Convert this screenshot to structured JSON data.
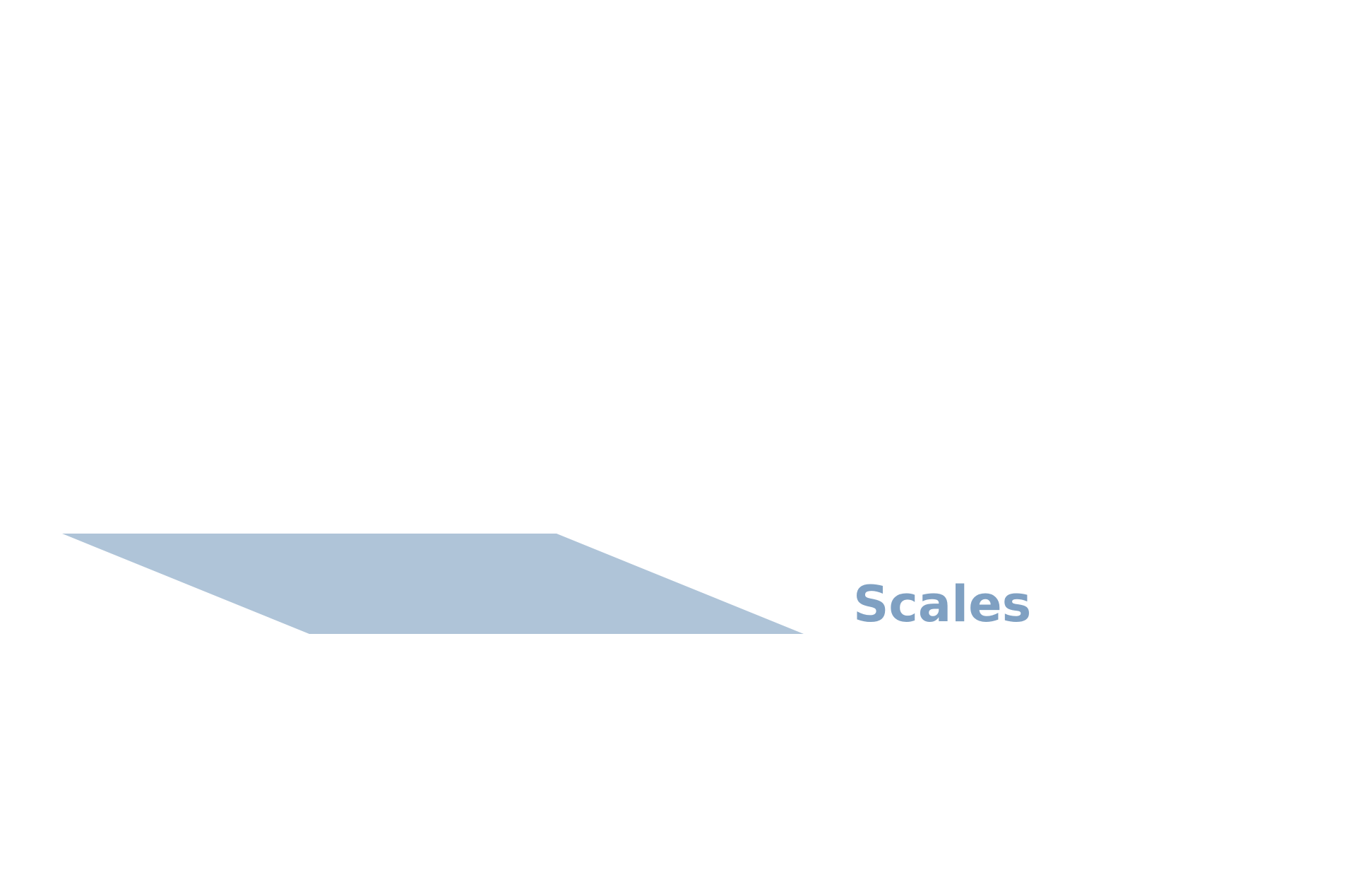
{
  "diagram": {
    "label": "Scales",
    "colors": {
      "background": "#ffffff",
      "shape_fill": "#afc4d8",
      "label_color": "#7fa0c2"
    }
  }
}
